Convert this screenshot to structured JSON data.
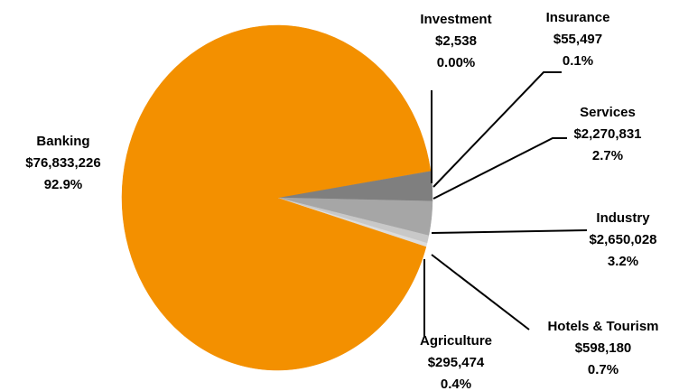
{
  "chart_data": {
    "type": "pie",
    "categories": [
      "Investment",
      "Insurance",
      "Services",
      "Industry",
      "Hotels & Tourism",
      "Agriculture",
      "Banking"
    ],
    "values": [
      2538,
      55497,
      2270831,
      2650028,
      598180,
      295474,
      76833226
    ],
    "value_labels": [
      "$2,538",
      "$55,497",
      "$2,270,831",
      "$2,650,028",
      "$598,180",
      "$295,474",
      "$76,833,226"
    ],
    "percent_labels": [
      "0.00%",
      "0.1%",
      "2.7%",
      "3.2%",
      "0.7%",
      "0.4%",
      "92.9%"
    ],
    "colors": [
      "#5f5f5f",
      "#8c8c8c",
      "#7f7f7f",
      "#a6a6a6",
      "#c8c8c8",
      "#dcdcdc",
      "#f39000"
    ]
  }
}
